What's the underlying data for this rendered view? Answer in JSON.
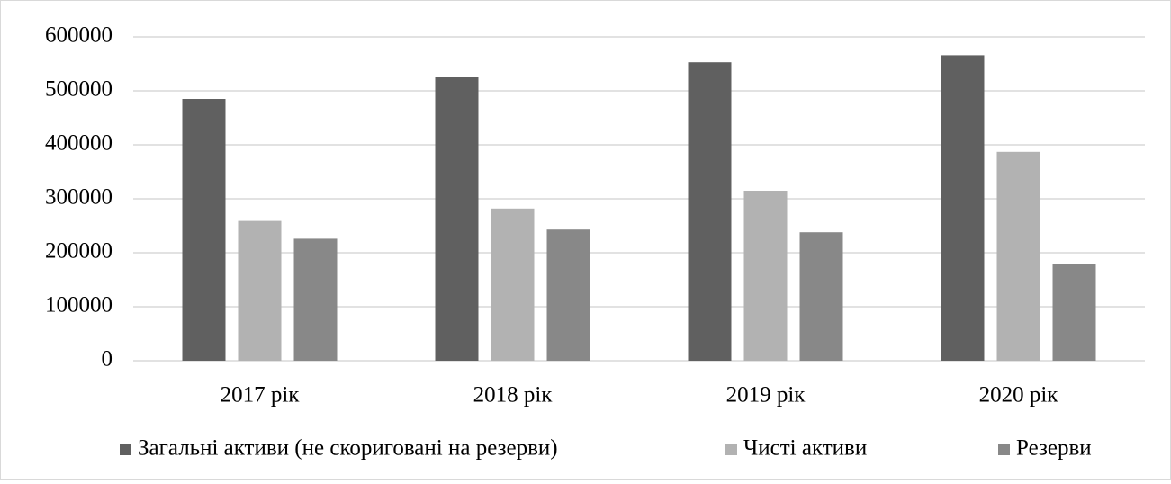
{
  "chart_data": {
    "type": "bar",
    "categories": [
      "2017 рік",
      "2018 рік",
      "2019 рік",
      "2020 рік"
    ],
    "series": [
      {
        "name": "Загальні активи (не скориговані на резерви)",
        "color": "#606060",
        "values": [
          485000,
          525000,
          553000,
          566000
        ]
      },
      {
        "name": "Чисті активи",
        "color": "#b2b2b2",
        "values": [
          259000,
          282000,
          315000,
          387000
        ]
      },
      {
        "name": "Резерви",
        "color": "#888888",
        "values": [
          226000,
          243000,
          238000,
          180000
        ]
      }
    ],
    "ylim": [
      0,
      600000
    ],
    "yticks": [
      0,
      100000,
      200000,
      300000,
      400000,
      500000,
      600000
    ],
    "grid": true,
    "legend": "bottom"
  }
}
